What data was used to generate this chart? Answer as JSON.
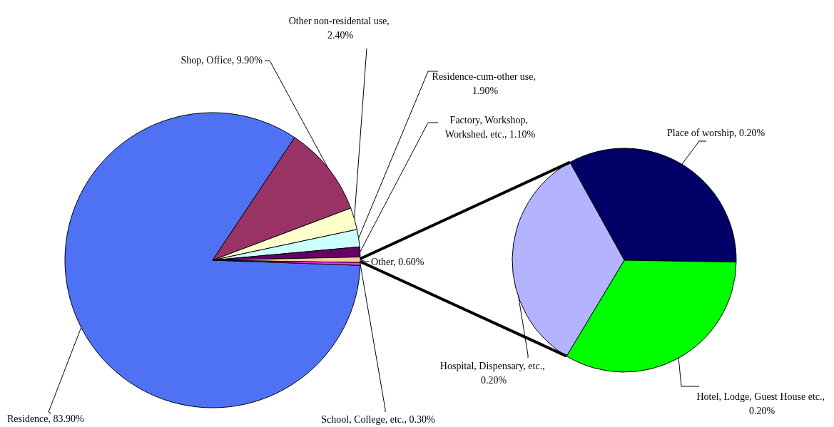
{
  "chart_data": [
    {
      "type": "pie",
      "categories": [
        "Residence, 83.90%",
        "Shop, Office, 9.90%",
        "Other non-residental use, 2.40%",
        "Residence-cum-other use, 1.90%",
        "Factory, Workshop, Workshed, etc., 1.10%",
        "Other, 0.60%",
        "School, College, etc., 0.30%"
      ],
      "values": [
        83.9,
        9.9,
        2.4,
        1.9,
        1.1,
        0.6,
        0.3
      ],
      "colors": [
        "#4f72f4",
        "#993366",
        "#ffffcc",
        "#ccffff",
        "#660066",
        "#ffcc99",
        "#ff33ff"
      ],
      "legend": false
    },
    {
      "type": "pie",
      "categories": [
        "Place of worship, 0.20%",
        "Hotel, Lodge, Guest House etc., 0.20%",
        "Hospital, Dispensary, etc., 0.20%"
      ],
      "values": [
        0.2,
        0.2,
        0.2
      ],
      "colors": [
        "#000066",
        "#00ff00",
        "#b3b3ff"
      ],
      "legend": false
    }
  ]
}
